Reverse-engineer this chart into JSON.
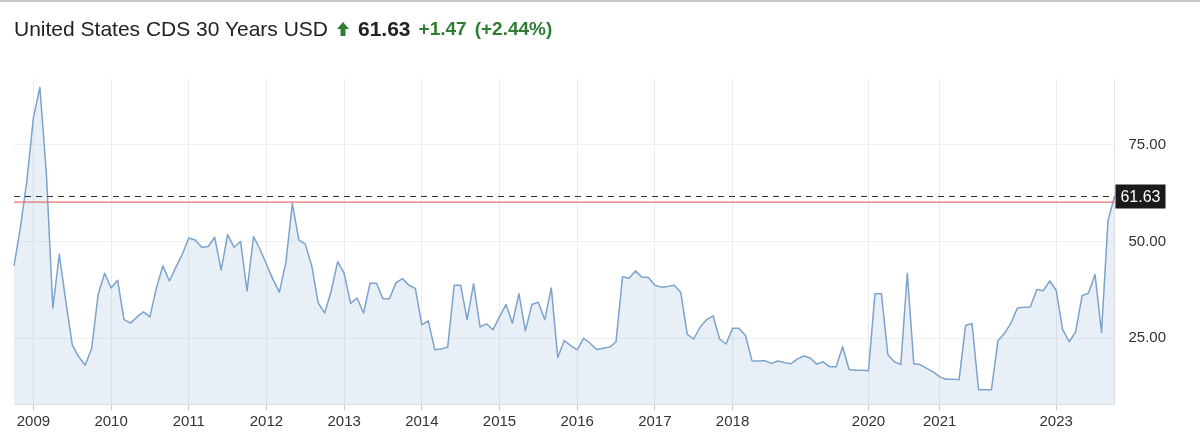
{
  "chart_data": {
    "type": "area",
    "title": "United States CDS 30 Years USD",
    "annotations": [
      "61.63",
      "+1.47",
      "(+2.44%)"
    ],
    "categories": [
      null,
      null,
      null,
      "2009",
      null,
      null,
      null,
      null,
      null,
      null,
      null,
      null,
      null,
      null,
      null,
      "2010",
      null,
      null,
      null,
      null,
      null,
      null,
      null,
      null,
      null,
      null,
      null,
      "2011",
      null,
      null,
      null,
      null,
      null,
      null,
      null,
      null,
      null,
      null,
      null,
      "2012",
      null,
      null,
      null,
      null,
      null,
      null,
      null,
      null,
      null,
      null,
      null,
      "2013",
      null,
      null,
      null,
      null,
      null,
      null,
      null,
      null,
      null,
      null,
      null,
      "2014",
      null,
      null,
      null,
      null,
      null,
      null,
      null,
      null,
      null,
      null,
      null,
      "2015",
      null,
      null,
      null,
      null,
      null,
      null,
      null,
      null,
      null,
      null,
      null,
      "2016",
      null,
      null,
      null,
      null,
      null,
      null,
      null,
      null,
      null,
      null,
      null,
      "2017",
      null,
      null,
      null,
      null,
      null,
      null,
      null,
      null,
      null,
      null,
      null,
      "2018",
      null,
      null,
      null,
      null,
      null,
      null,
      null,
      null,
      null,
      null,
      null,
      null,
      null,
      null,
      null,
      null,
      null,
      null,
      null,
      null,
      "2020",
      null,
      null,
      null,
      null,
      null,
      null,
      null,
      null,
      null,
      null,
      "2021",
      null,
      null,
      null,
      null,
      null,
      null,
      null,
      null,
      null,
      null,
      null,
      null,
      null,
      null,
      null,
      null,
      null,
      "2023",
      null,
      null,
      null,
      null,
      null,
      null,
      null,
      null,
      null
    ],
    "series": [
      {
        "color": "#7ba3cc",
        "values": [
          43.7,
          53.7,
          65.9,
          82,
          89.8,
          67.6,
          32.8,
          46.7,
          34.6,
          23.3,
          20.2,
          18,
          22.4,
          36.3,
          41.8,
          38,
          40,
          29.8,
          28.9,
          30.5,
          31.8,
          30.5,
          38,
          43.7,
          39.8,
          43.3,
          46.7,
          50.9,
          50.4,
          48.5,
          48.7,
          51.1,
          42.6,
          51.8,
          48.5,
          50,
          37.2,
          51.3,
          48,
          44.1,
          40.2,
          36.9,
          44.6,
          59.8,
          50.4,
          49.3,
          43.7,
          34.1,
          31.5,
          37.2,
          44.8,
          41.8,
          34,
          35.4,
          31.5,
          39.2,
          39.2,
          35.2,
          35.2,
          39.3,
          40.4,
          38.7,
          37.9,
          28.5,
          29.5,
          22,
          22.2,
          22.7,
          38.7,
          38.7,
          29.8,
          39.1,
          27.9,
          28.7,
          27.2,
          30.5,
          33.7,
          28.9,
          36.5,
          26.9,
          33.7,
          34.3,
          29.8,
          38,
          20,
          24.4,
          23.1,
          22,
          25,
          23.7,
          22.1,
          22.4,
          22.7,
          24.1,
          40.9,
          40.5,
          42.4,
          40.8,
          40.7,
          38.7,
          38.2,
          38.4,
          38.7,
          36.9,
          26,
          24.8,
          27.9,
          29.8,
          30.8,
          24.8,
          23.5,
          27.6,
          27.6,
          25.7,
          19.2,
          19.1,
          19.2,
          18.5,
          19.1,
          18.7,
          18.4,
          19.6,
          20.4,
          19.9,
          18.3,
          18.9,
          17.6,
          17.6,
          22.8,
          16.9,
          16.7,
          16.7,
          16.6,
          36.5,
          36.5,
          20.7,
          18.9,
          18.2,
          41.8,
          18.4,
          18.2,
          17.2,
          16.3,
          15,
          14.4,
          14.4,
          14.3,
          28.3,
          28.8,
          11.7,
          11.7,
          11.7,
          24.4,
          26.2,
          28.9,
          32.8,
          33,
          33.1,
          37.6,
          37.3,
          39.8,
          37.4,
          27.2,
          24.1,
          26.6,
          36,
          36.7,
          41.5,
          26.5,
          55.4,
          61.63
        ]
      }
    ],
    "ylim": [
      8,
      92
    ],
    "yticks": [
      {
        "value": 25,
        "label": "25.00"
      },
      {
        "value": 50,
        "label": "50.00"
      },
      {
        "value": 75,
        "label": "75.00"
      }
    ],
    "ref_lines": [
      {
        "axis": "y",
        "value": 61.63,
        "label": "61.63",
        "color": "#333333",
        "line_style": "dashed"
      },
      {
        "axis": "y",
        "value": 60.16,
        "color": "#e57373",
        "line_style": "solid"
      }
    ],
    "grid": true,
    "marker": "none",
    "legend": false
  }
}
